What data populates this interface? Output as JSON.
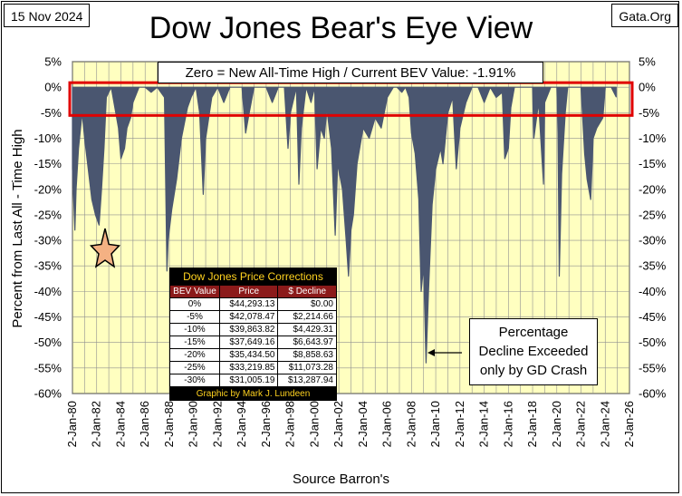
{
  "header": {
    "date": "15 Nov 2024",
    "site": "Gata.Org",
    "title": "Dow Jones Bear's Eye View"
  },
  "bev_box": {
    "label": "Zero = New All-Time High / Current BEV Value:  -1.91%"
  },
  "note_box": {
    "line1": "Percentage",
    "line2": "Decline Exceeded",
    "line3": "only by GD Crash"
  },
  "source": "Source Barron's",
  "colors": {
    "plot_bg": "#ffffc0",
    "series": "#4a5670",
    "highlight_box": "#e00000",
    "grid": "#909090"
  },
  "corrections_table": {
    "title": "Dow Jones Price Corrections",
    "headers": [
      "BEV Value",
      "Price",
      "$ Decline"
    ],
    "rows": [
      [
        "0%",
        "$44,293.13",
        "$0.00"
      ],
      [
        "-5%",
        "$42,078.47",
        "$2,214.66"
      ],
      [
        "-10%",
        "$39,863.82",
        "$4,429.31"
      ],
      [
        "-15%",
        "$37,649.16",
        "$6,643.97"
      ],
      [
        "-20%",
        "$35,434.50",
        "$8,858.63"
      ],
      [
        "-25%",
        "$33,219.85",
        "$11,073.28"
      ],
      [
        "-30%",
        "$31,005.19",
        "$13,287.94"
      ]
    ],
    "credit": "Graphic by Mark J. Lundeen"
  },
  "chart_data": {
    "type": "area",
    "title": "Dow Jones Bear's Eye View",
    "ylabel": "Percent from Last All - Time High",
    "xlabel": "Source Barron's",
    "ylim": [
      -60,
      5
    ],
    "xlim": [
      1980.0,
      2026.0
    ],
    "grid": true,
    "y_ticks": [
      "5%",
      "0%",
      "-5%",
      "-10%",
      "-15%",
      "-20%",
      "-25%",
      "-30%",
      "-35%",
      "-40%",
      "-45%",
      "-50%",
      "-55%",
      "-60%"
    ],
    "y_tick_values": [
      5,
      0,
      -5,
      -10,
      -15,
      -20,
      -25,
      -30,
      -35,
      -40,
      -45,
      -50,
      -55,
      -60
    ],
    "x_ticks": [
      "2-Jan-80",
      "2-Jan-82",
      "2-Jan-84",
      "2-Jan-86",
      "2-Jan-88",
      "2-Jan-90",
      "2-Jan-92",
      "2-Jan-94",
      "2-Jan-96",
      "2-Jan-98",
      "2-Jan-00",
      "2-Jan-02",
      "2-Jan-04",
      "2-Jan-06",
      "2-Jan-08",
      "2-Jan-10",
      "2-Jan-12",
      "2-Jan-14",
      "2-Jan-16",
      "2-Jan-18",
      "2-Jan-20",
      "2-Jan-22",
      "2-Jan-24",
      "2-Jan-26"
    ],
    "x_tick_values": [
      1980,
      1982,
      1984,
      1986,
      1988,
      1990,
      1992,
      1994,
      1996,
      1998,
      2000,
      2002,
      2004,
      2006,
      2008,
      2010,
      2012,
      2014,
      2016,
      2018,
      2020,
      2022,
      2024,
      2026
    ],
    "highlight_band": [
      -5,
      0
    ],
    "current_value": -1.91,
    "series": [
      {
        "x": [
          1980.0,
          1980.2,
          1980.3,
          1980.5,
          1980.8,
          1981.0,
          1981.3,
          1981.6,
          1981.9,
          1982.2,
          1982.4,
          1982.6,
          1982.8,
          1983.0,
          1983.2,
          1983.5,
          1983.8,
          1984.0,
          1984.3,
          1984.5,
          1984.8,
          1985.0,
          1985.5,
          1986.0,
          1986.5,
          1987.0,
          1987.6,
          1987.8,
          1987.9,
          1988.2,
          1988.6,
          1989.0,
          1989.5,
          1989.8,
          1990.2,
          1990.5,
          1990.8,
          1991.0,
          1991.5,
          1992.0,
          1992.5,
          1993.0,
          1994.0,
          1994.3,
          1994.6,
          1995.0,
          1996.0,
          1996.5,
          1997.0,
          1997.5,
          1997.8,
          1998.0,
          1998.5,
          1998.7,
          1998.9,
          1999.3,
          1999.7,
          2000.0,
          2000.2,
          2000.5,
          2000.8,
          2001.0,
          2001.4,
          2001.7,
          2001.9,
          2002.3,
          2002.6,
          2002.8,
          2003.0,
          2003.2,
          2003.5,
          2004.0,
          2004.5,
          2005.0,
          2005.5,
          2006.0,
          2006.5,
          2006.8,
          2007.2,
          2007.5,
          2007.8,
          2008.0,
          2008.3,
          2008.6,
          2008.8,
          2009.0,
          2009.2,
          2009.4,
          2009.7,
          2010.0,
          2010.4,
          2010.6,
          2011.0,
          2011.4,
          2011.7,
          2012.0,
          2012.5,
          2013.0,
          2013.5,
          2014.0,
          2014.5,
          2015.0,
          2015.5,
          2015.7,
          2016.0,
          2016.2,
          2016.5,
          2016.8,
          2017.0,
          2017.5,
          2018.0,
          2018.1,
          2018.5,
          2018.9,
          2019.0,
          2019.5,
          2020.0,
          2020.1,
          2020.2,
          2020.4,
          2020.7,
          2020.9,
          2021.5,
          2022.0,
          2022.3,
          2022.5,
          2022.8,
          2023.0,
          2023.3,
          2023.8,
          2024.0,
          2024.5,
          2024.9
        ],
        "values": [
          -16,
          -28,
          -20,
          -12,
          -5,
          -10,
          -16,
          -22,
          -25,
          -27,
          -20,
          -12,
          -2,
          -1,
          0,
          -4,
          -8,
          -14,
          -12,
          -8,
          -6,
          -3,
          0,
          0,
          -1,
          0,
          -2,
          -36,
          -30,
          -24,
          -18,
          -10,
          -4,
          -2,
          0,
          -5,
          -21,
          -10,
          -2,
          0,
          -3,
          0,
          0,
          -9,
          -5,
          0,
          0,
          -3,
          0,
          0,
          -12,
          -5,
          0,
          -19,
          -8,
          0,
          -3,
          0,
          -16,
          -8,
          -10,
          -4,
          -12,
          -29,
          -15,
          -20,
          -30,
          -37,
          -28,
          -25,
          -15,
          -8,
          -10,
          -6,
          -8,
          -2,
          0,
          0,
          -1,
          0,
          -2,
          -9,
          -13,
          -22,
          -40,
          -35,
          -54,
          -40,
          -23,
          -16,
          -12,
          -15,
          -5,
          -2,
          -16,
          -8,
          -3,
          0,
          0,
          -3,
          0,
          -2,
          -1,
          -14,
          -12,
          -4,
          0,
          0,
          0,
          0,
          0,
          -10,
          -3,
          -19,
          -3,
          0,
          0,
          -9,
          -37,
          -17,
          -5,
          0,
          0,
          0,
          -13,
          -18,
          -22,
          -10,
          -8,
          -6,
          0,
          0,
          -1.91
        ]
      }
    ]
  }
}
